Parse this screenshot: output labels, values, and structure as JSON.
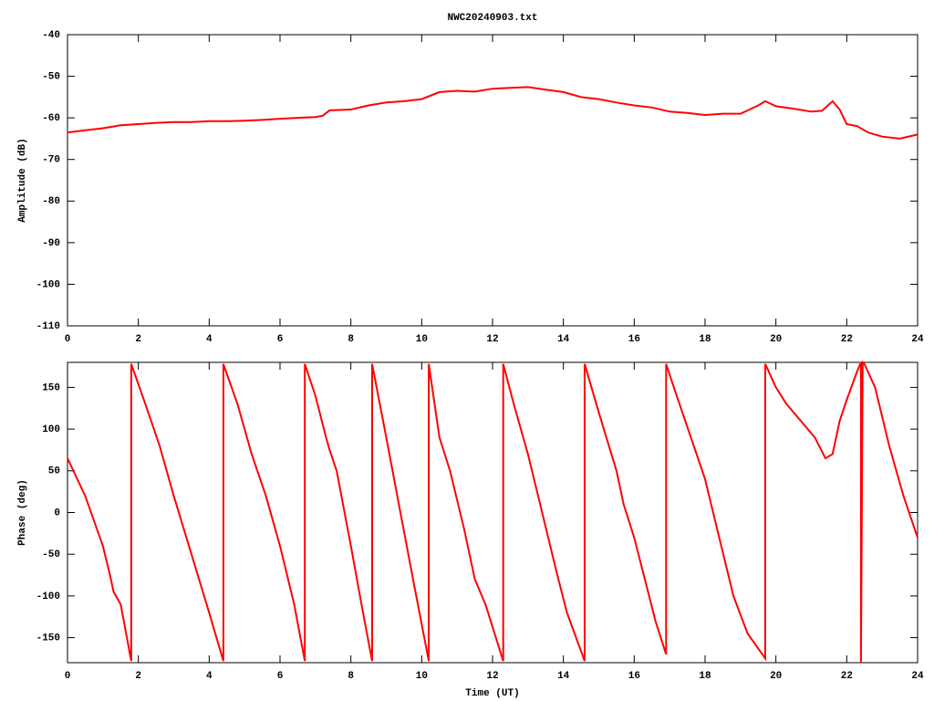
{
  "chart_data": [
    {
      "type": "line",
      "title": "NWC20240903.txt",
      "ylabel": "Amplitude (dB)",
      "xlim": [
        0,
        24
      ],
      "xticks": [
        0,
        2,
        4,
        6,
        8,
        10,
        12,
        14,
        16,
        18,
        20,
        22,
        24
      ],
      "ylim": [
        -110,
        -40
      ],
      "yticks": [
        -110,
        -100,
        -90,
        -80,
        -70,
        -60,
        -50,
        -40
      ],
      "series": [
        {
          "color": "#ff0000",
          "x": [
            0,
            0.5,
            1,
            1.5,
            2,
            2.5,
            3,
            3.5,
            4,
            4.5,
            5,
            5.5,
            6,
            6.5,
            7,
            7.2,
            7.4,
            8,
            8.5,
            9,
            9.5,
            10,
            10.5,
            11,
            11.5,
            12,
            12.5,
            13,
            13.5,
            14,
            14.5,
            15,
            15.5,
            16,
            16.5,
            17,
            17.5,
            18,
            18.5,
            19,
            19.5,
            19.7,
            20,
            20.5,
            21,
            21.3,
            21.6,
            21.8,
            22,
            22.3,
            22.6,
            23,
            23.5,
            24
          ],
          "values": [
            -63.5,
            -63,
            -62.5,
            -61.8,
            -61.5,
            -61.2,
            -61,
            -61,
            -60.8,
            -60.8,
            -60.7,
            -60.5,
            -60.2,
            -60,
            -59.8,
            -59.5,
            -58.2,
            -58,
            -57,
            -56.3,
            -56,
            -55.5,
            -53.8,
            -53.5,
            -53.7,
            -53,
            -52.8,
            -52.6,
            -53.2,
            -53.8,
            -55,
            -55.5,
            -56.3,
            -57,
            -57.5,
            -58.5,
            -58.8,
            -59.3,
            -59,
            -59,
            -57,
            -56,
            -57.2,
            -57.8,
            -58.5,
            -58.3,
            -56,
            -58,
            -61.5,
            -62,
            -63.5,
            -64.5,
            -65,
            -64
          ]
        }
      ]
    },
    {
      "type": "line",
      "xlabel": "Time (UT)",
      "ylabel": "Phase (deg)",
      "xlim": [
        0,
        24
      ],
      "xticks": [
        0,
        2,
        4,
        6,
        8,
        10,
        12,
        14,
        16,
        18,
        20,
        22,
        24
      ],
      "ylim": [
        -180,
        180
      ],
      "yticks": [
        -150,
        -100,
        -50,
        0,
        50,
        100,
        150
      ],
      "series": [
        {
          "color": "#ff0000",
          "x": [
            0,
            0.5,
            1,
            1.2,
            1.3,
            1.5,
            1.8,
            1.8,
            2.2,
            2.6,
            3,
            3.5,
            4,
            4.4,
            4.4,
            4.8,
            5.2,
            5.6,
            6,
            6.4,
            6.7,
            6.7,
            7,
            7.3,
            7.4,
            7.6,
            8,
            8.3,
            8.6,
            8.6,
            9,
            9.4,
            9.8,
            10.2,
            10.2,
            10.5,
            10.8,
            11.2,
            11.5,
            11.8,
            12.3,
            12.3,
            12.6,
            13,
            13.4,
            13.8,
            14.1,
            14.6,
            14.6,
            15,
            15.5,
            15.7,
            16,
            16.3,
            16.6,
            16.9,
            16.9,
            17.2,
            17.6,
            18,
            18.4,
            18.8,
            19.2,
            19.7,
            19.7,
            20,
            20.3,
            20.8,
            21.1,
            21.4,
            21.6,
            21.8,
            22,
            22.3,
            22.4,
            22.4,
            22.45,
            22.5,
            22.8,
            23.2,
            23.6,
            24
          ],
          "values": [
            65,
            20,
            -40,
            -75,
            -95,
            -110,
            -178,
            178,
            130,
            80,
            20,
            -50,
            -120,
            -178,
            178,
            130,
            70,
            20,
            -40,
            -110,
            -178,
            178,
            140,
            90,
            75,
            50,
            -40,
            -110,
            -178,
            178,
            90,
            0,
            -90,
            -178,
            178,
            90,
            50,
            -20,
            -80,
            -110,
            -178,
            178,
            130,
            70,
            0,
            -70,
            -120,
            -178,
            178,
            120,
            50,
            10,
            -30,
            -80,
            -130,
            -170,
            178,
            140,
            90,
            40,
            -30,
            -100,
            -145,
            -175,
            178,
            150,
            130,
            105,
            90,
            65,
            70,
            110,
            135,
            170,
            180,
            -180,
            180,
            178,
            150,
            80,
            20,
            -30
          ]
        }
      ]
    }
  ]
}
